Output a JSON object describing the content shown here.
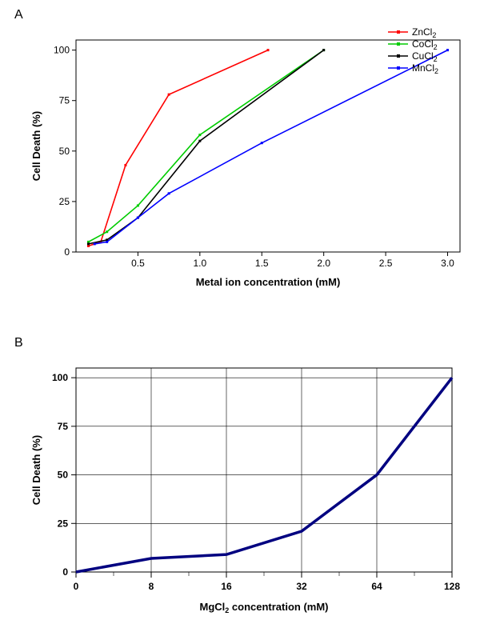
{
  "panelA": {
    "label": "A",
    "type": "line",
    "x_axis_title_prefix": "Metal ion concentration (mM)",
    "y_axis_title": "Cell Death (%)",
    "xlim": [
      0,
      3.1
    ],
    "ylim": [
      0,
      105
    ],
    "xticks": [
      0.5,
      1.0,
      1.5,
      2.0,
      2.5,
      3.0
    ],
    "yticks": [
      0,
      25,
      50,
      75,
      100
    ],
    "background_color": "#ffffff",
    "axis_color": "#000000",
    "line_width": 1.6,
    "marker_size": 3,
    "label_fontsize": 13,
    "tick_fontsize": 12,
    "legend_pos": "top-right",
    "series": [
      {
        "name": "ZnCl2",
        "label_html": "ZnCl<sub>2</sub>",
        "color": "#ff0000",
        "x": [
          0.1,
          0.2,
          0.4,
          0.75,
          1.55
        ],
        "y": [
          3,
          5,
          43,
          78,
          100
        ]
      },
      {
        "name": "CoCl2",
        "label_html": "CoCl<sub>2</sub>",
        "color": "#00cc00",
        "x": [
          0.1,
          0.25,
          0.5,
          1.0,
          2.0
        ],
        "y": [
          5,
          10,
          23,
          58,
          100
        ]
      },
      {
        "name": "CuCl2",
        "label_html": "CuCl<sub>2</sub>",
        "color": "#000000",
        "x": [
          0.1,
          0.25,
          0.5,
          1.0,
          2.0
        ],
        "y": [
          4,
          6,
          17,
          55,
          100
        ]
      },
      {
        "name": "MnCl2",
        "label_html": "MnCl<sub>2</sub>",
        "color": "#0000ff",
        "x": [
          0.15,
          0.25,
          0.5,
          0.75,
          1.5,
          3.0
        ],
        "y": [
          4,
          5,
          17,
          29,
          54,
          100
        ]
      }
    ]
  },
  "panelB": {
    "label": "B",
    "type": "line",
    "x_axis_title_html": "MgCl<sub>2</sub> concentration (mM)",
    "y_axis_title": "Cell Death (%)",
    "categories": [
      "0",
      "8",
      "16",
      "32",
      "64",
      "128"
    ],
    "values": [
      0,
      7,
      9,
      21,
      50,
      100
    ],
    "ylim": [
      0,
      105
    ],
    "yticks": [
      0,
      25,
      50,
      75,
      100
    ],
    "line_color": "#000080",
    "line_width": 3.5,
    "background_color": "#ffffff",
    "grid_color": "#000000",
    "grid_width": 0.6,
    "label_fontsize": 13,
    "tick_fontsize": 12
  }
}
